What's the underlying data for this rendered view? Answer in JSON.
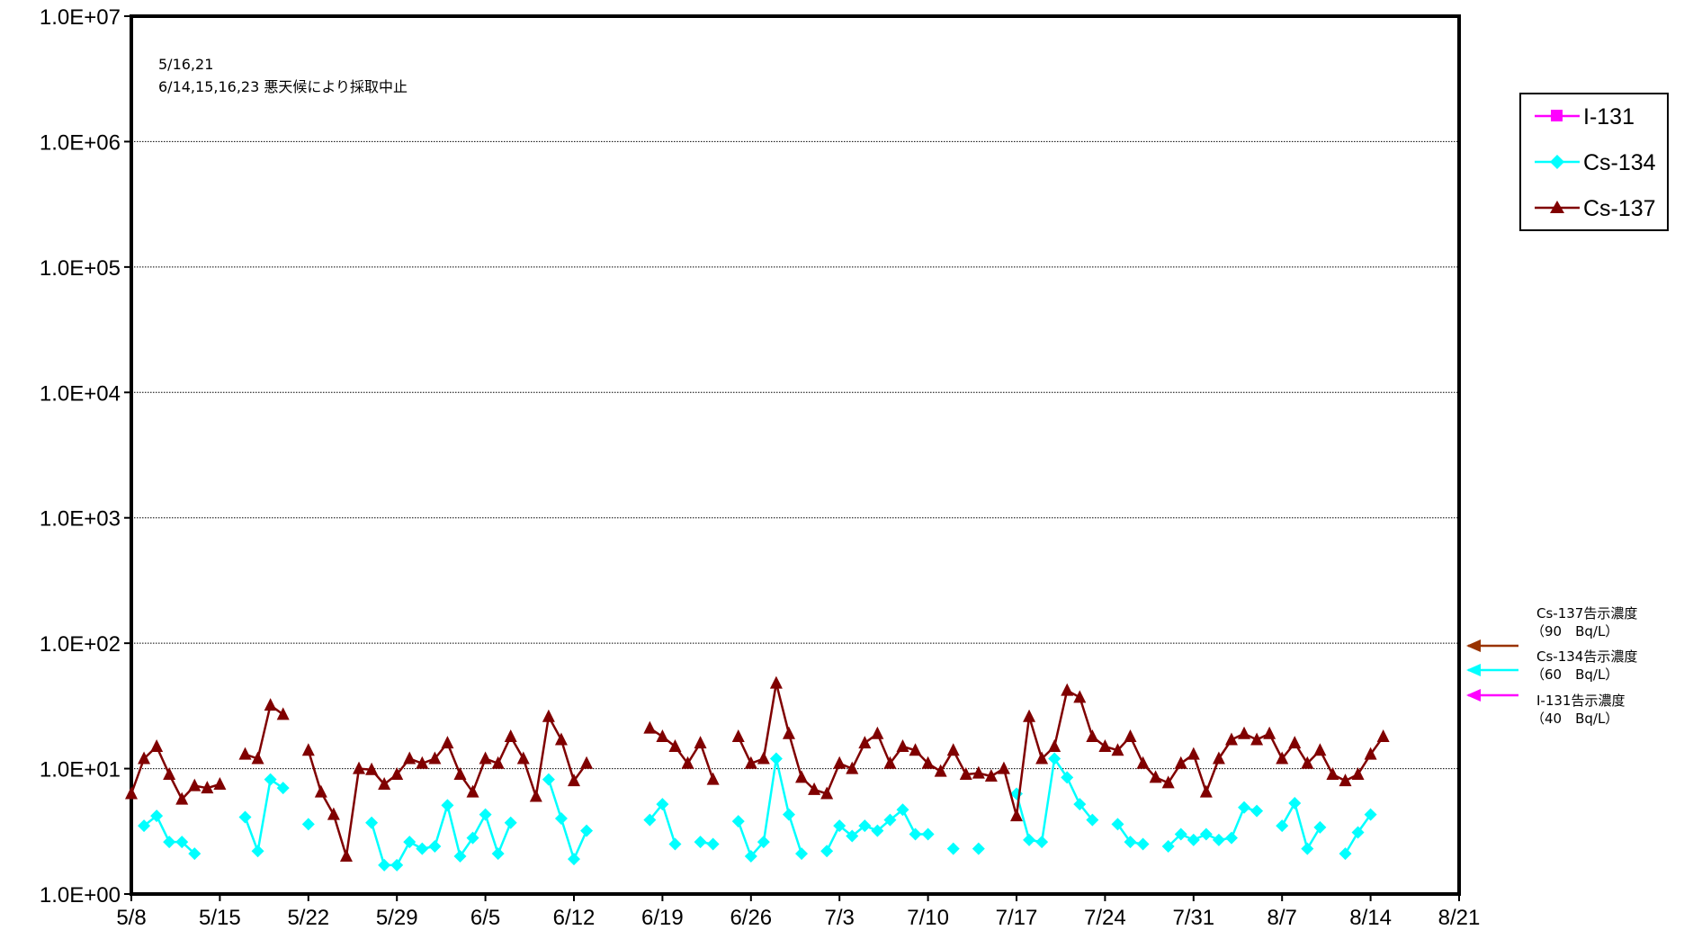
{
  "chart_data": {
    "type": "line",
    "y_scale": "log",
    "ylim": [
      1,
      10000000
    ],
    "y_ticks": [
      {
        "value": 1,
        "label": "1.0E+00"
      },
      {
        "value": 10,
        "label": "1.0E+01"
      },
      {
        "value": 100,
        "label": "1.0E+02"
      },
      {
        "value": 1000,
        "label": "1.0E+03"
      },
      {
        "value": 10000,
        "label": "1.0E+04"
      },
      {
        "value": 100000,
        "label": "1.0E+05"
      },
      {
        "value": 1000000,
        "label": "1.0E+06"
      },
      {
        "value": 10000000,
        "label": "1.0E+07"
      }
    ],
    "xlim": [
      "5/8",
      "8/21"
    ],
    "x_ticks": [
      "5/8",
      "5/15",
      "5/22",
      "5/29",
      "6/5",
      "6/12",
      "6/19",
      "6/26",
      "7/3",
      "7/10",
      "7/17",
      "7/24",
      "7/31",
      "8/7",
      "8/14",
      "8/21"
    ],
    "grid": "horizontal",
    "legend_position": "right",
    "annotation_lines": [
      "5/16,21",
      "6/14,15,16,23 悪天候により採取中止"
    ],
    "series": [
      {
        "name": "I-131",
        "marker": "square",
        "color": "#FF00FF",
        "points": []
      },
      {
        "name": "Cs-134",
        "marker": "diamond",
        "color": "#00FFFF",
        "points": [
          [
            "5/9",
            3.5
          ],
          [
            "5/10",
            4.2
          ],
          [
            "5/11",
            2.6
          ],
          [
            "5/12",
            2.6
          ],
          [
            "5/13",
            2.1
          ],
          [
            "5/17",
            4.1
          ],
          [
            "5/18",
            2.2
          ],
          [
            "5/19",
            8.2
          ],
          [
            "5/20",
            7
          ],
          [
            "5/22",
            3.6
          ],
          [
            "5/27",
            3.7
          ],
          [
            "5/28",
            1.7
          ],
          [
            "5/29",
            1.7
          ],
          [
            "5/30",
            2.6
          ],
          [
            "5/31",
            2.3
          ],
          [
            "6/1",
            2.4
          ],
          [
            "6/2",
            5.1
          ],
          [
            "6/3",
            2
          ],
          [
            "6/4",
            2.8
          ],
          [
            "6/5",
            4.3
          ],
          [
            "6/6",
            2.1
          ],
          [
            "6/7",
            3.7
          ],
          [
            "6/10",
            8.2
          ],
          [
            "6/11",
            4
          ],
          [
            "6/12",
            1.9
          ],
          [
            "6/13",
            3.2
          ],
          [
            "6/18",
            3.9
          ],
          [
            "6/19",
            5.2
          ],
          [
            "6/20",
            2.5
          ],
          [
            "6/22",
            2.6
          ],
          [
            "6/23",
            2.5
          ],
          [
            "6/25",
            3.8
          ],
          [
            "6/26",
            2
          ],
          [
            "6/27",
            2.6
          ],
          [
            "6/28",
            12
          ],
          [
            "6/29",
            4.3
          ],
          [
            "6/30",
            2.1
          ],
          [
            "7/2",
            2.2
          ],
          [
            "7/3",
            3.5
          ],
          [
            "7/4",
            2.9
          ],
          [
            "7/5",
            3.5
          ],
          [
            "7/6",
            3.2
          ],
          [
            "7/7",
            3.9
          ],
          [
            "7/8",
            4.7
          ],
          [
            "7/9",
            3
          ],
          [
            "7/10",
            3
          ],
          [
            "7/12",
            2.3
          ],
          [
            "7/14",
            2.3
          ],
          [
            "7/17",
            6.3
          ],
          [
            "7/18",
            2.7
          ],
          [
            "7/19",
            2.6
          ],
          [
            "7/20",
            12
          ],
          [
            "7/21",
            8.5
          ],
          [
            "7/22",
            5.2
          ],
          [
            "7/23",
            3.9
          ],
          [
            "7/25",
            3.6
          ],
          [
            "7/26",
            2.6
          ],
          [
            "7/27",
            2.5
          ],
          [
            "7/29",
            2.4
          ],
          [
            "7/30",
            3
          ],
          [
            "7/31",
            2.7
          ],
          [
            "8/1",
            3
          ],
          [
            "8/2",
            2.7
          ],
          [
            "8/3",
            2.8
          ],
          [
            "8/4",
            4.9
          ],
          [
            "8/5",
            4.6
          ],
          [
            "8/7",
            3.5
          ],
          [
            "8/8",
            5.3
          ],
          [
            "8/9",
            2.3
          ],
          [
            "8/10",
            3.4
          ],
          [
            "8/12",
            2.1
          ],
          [
            "8/13",
            3.1
          ],
          [
            "8/14",
            4.3
          ]
        ]
      },
      {
        "name": "Cs-137",
        "marker": "triangle",
        "color": "#800000",
        "points": [
          [
            "5/8",
            6.3
          ],
          [
            "5/9",
            12
          ],
          [
            "5/10",
            15
          ],
          [
            "5/11",
            9
          ],
          [
            "5/12",
            5.7
          ],
          [
            "5/13",
            7.3
          ],
          [
            "5/14",
            7
          ],
          [
            "5/15",
            7.5
          ],
          [
            "5/17",
            13
          ],
          [
            "5/18",
            12
          ],
          [
            "5/19",
            32
          ],
          [
            "5/20",
            27
          ],
          [
            "5/22",
            14
          ],
          [
            "5/23",
            6.5
          ],
          [
            "5/24",
            4.3
          ],
          [
            "5/25",
            2
          ],
          [
            "5/26",
            10
          ],
          [
            "5/27",
            9.8
          ],
          [
            "5/28",
            7.5
          ],
          [
            "5/29",
            9
          ],
          [
            "5/30",
            12
          ],
          [
            "5/31",
            11
          ],
          [
            "6/1",
            12
          ],
          [
            "6/2",
            16
          ],
          [
            "6/3",
            9
          ],
          [
            "6/4",
            6.5
          ],
          [
            "6/5",
            12
          ],
          [
            "6/6",
            11
          ],
          [
            "6/7",
            18
          ],
          [
            "6/8",
            12
          ],
          [
            "6/9",
            6
          ],
          [
            "6/10",
            26
          ],
          [
            "6/11",
            17
          ],
          [
            "6/12",
            8
          ],
          [
            "6/13",
            11
          ],
          [
            "6/18",
            21
          ],
          [
            "6/19",
            18
          ],
          [
            "6/20",
            15
          ],
          [
            "6/21",
            11
          ],
          [
            "6/22",
            16
          ],
          [
            "6/23",
            8.2
          ],
          [
            "6/25",
            18
          ],
          [
            "6/26",
            11
          ],
          [
            "6/27",
            12
          ],
          [
            "6/28",
            48
          ],
          [
            "6/29",
            19
          ],
          [
            "6/30",
            8.5
          ],
          [
            "7/1",
            6.8
          ],
          [
            "7/2",
            6.3
          ],
          [
            "7/3",
            11
          ],
          [
            "7/4",
            10
          ],
          [
            "7/5",
            16
          ],
          [
            "7/6",
            19
          ],
          [
            "7/7",
            11
          ],
          [
            "7/8",
            15
          ],
          [
            "7/9",
            14
          ],
          [
            "7/10",
            11
          ],
          [
            "7/11",
            9.5
          ],
          [
            "7/12",
            14
          ],
          [
            "7/13",
            9
          ],
          [
            "7/14",
            9.2
          ],
          [
            "7/15",
            8.7
          ],
          [
            "7/16",
            10
          ],
          [
            "7/17",
            4.2
          ],
          [
            "7/18",
            26
          ],
          [
            "7/19",
            12
          ],
          [
            "7/20",
            15
          ],
          [
            "7/21",
            42
          ],
          [
            "7/22",
            37
          ],
          [
            "7/23",
            18
          ],
          [
            "7/24",
            15
          ],
          [
            "7/25",
            14
          ],
          [
            "7/26",
            18
          ],
          [
            "7/27",
            11
          ],
          [
            "7/28",
            8.5
          ],
          [
            "7/29",
            7.7
          ],
          [
            "7/30",
            11
          ],
          [
            "7/31",
            13
          ],
          [
            "8/1",
            6.5
          ],
          [
            "8/2",
            12
          ],
          [
            "8/3",
            17
          ],
          [
            "8/4",
            19
          ],
          [
            "8/5",
            17
          ],
          [
            "8/6",
            19
          ],
          [
            "8/7",
            12
          ],
          [
            "8/8",
            16
          ],
          [
            "8/9",
            11
          ],
          [
            "8/10",
            14
          ],
          [
            "8/11",
            9
          ],
          [
            "8/12",
            8
          ],
          [
            "8/13",
            9
          ],
          [
            "8/14",
            13
          ],
          [
            "8/15",
            18
          ]
        ]
      }
    ],
    "limit_markers": [
      {
        "label_line1": "Cs-137告示濃度",
        "label_line2": "（90　Bq/L）",
        "value": 90,
        "color": "#993300"
      },
      {
        "label_line1": "Cs-134告示濃度",
        "label_line2": "（60　Bq/L）",
        "value": 60,
        "color": "#00FFFF"
      },
      {
        "label_line1": "I-131告示濃度",
        "label_line2": "（40　Bq/L）",
        "value": 40,
        "color": "#FF00FF"
      }
    ]
  }
}
